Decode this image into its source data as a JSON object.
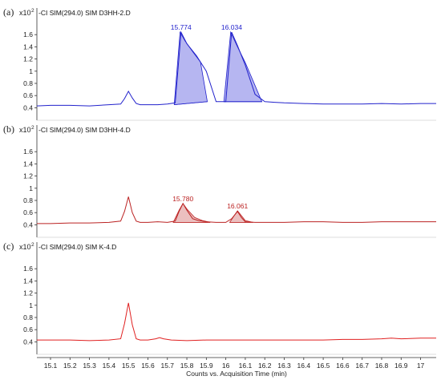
{
  "chart_data": {
    "type": "line",
    "xlabel": "Counts vs. Acquisition Time (min)",
    "x_ticks": [
      "15.1",
      "15.2",
      "15.3",
      "15.4",
      "15.5",
      "15.6",
      "15.7",
      "15.8",
      "15.9",
      "16",
      "16.1",
      "16.2",
      "16.3",
      "16.4",
      "16.5",
      "16.6",
      "16.7",
      "16.8",
      "16.9",
      "17"
    ],
    "xlim": [
      15.03,
      17.08
    ],
    "y_ticks": [
      "0.4",
      "0.6",
      "0.8",
      "1",
      "1.2",
      "1.4",
      "1.6"
    ],
    "ylim": [
      0.3,
      1.8
    ],
    "y_scale_label": "x10",
    "y_scale_exponent": "2",
    "grid": false,
    "panels": [
      {
        "letter": "(a)",
        "title": "-CI SIM(294.0) SIM D3HH-2.D",
        "color": "#2222cc",
        "fill_color": "#a9a9ee",
        "series": {
          "x": [
            15.03,
            15.1,
            15.2,
            15.3,
            15.4,
            15.46,
            15.48,
            15.5,
            15.52,
            15.54,
            15.56,
            15.6,
            15.65,
            15.7,
            15.74,
            15.77,
            15.8,
            15.85,
            15.9,
            15.95,
            16.0,
            16.03,
            16.06,
            16.1,
            16.15,
            16.2,
            16.25,
            16.3,
            16.4,
            16.5,
            16.6,
            16.7,
            16.8,
            16.9,
            17.0,
            17.08
          ],
          "y": [
            0.43,
            0.44,
            0.44,
            0.43,
            0.45,
            0.46,
            0.55,
            0.67,
            0.56,
            0.47,
            0.45,
            0.45,
            0.45,
            0.46,
            0.48,
            1.64,
            1.45,
            1.25,
            1.0,
            0.5,
            0.5,
            1.64,
            1.42,
            1.1,
            0.62,
            0.5,
            0.49,
            0.48,
            0.47,
            0.46,
            0.46,
            0.46,
            0.47,
            0.46,
            0.47,
            0.47
          ]
        },
        "peaks": [
          {
            "label": "15.774",
            "x_start": 15.735,
            "x_end": 15.905,
            "x_top": 15.77,
            "y_top": 1.64,
            "baseline_start": 0.45,
            "baseline_end": 0.5,
            "outline_x": [
              15.735,
              15.765,
              15.79,
              15.83,
              15.87,
              15.905
            ],
            "outline_y": [
              0.45,
              1.64,
              1.5,
              1.32,
              1.15,
              0.5
            ]
          },
          {
            "label": "16.034",
            "x_start": 15.99,
            "x_end": 16.185,
            "x_top": 16.03,
            "y_top": 1.64,
            "baseline_start": 0.5,
            "baseline_end": 0.5,
            "outline_x": [
              15.99,
              16.025,
              16.06,
              16.1,
              16.14,
              16.185
            ],
            "outline_y": [
              0.5,
              1.64,
              1.4,
              1.14,
              0.84,
              0.5
            ]
          }
        ]
      },
      {
        "letter": "(b)",
        "title": "-CI SIM(294.0) SIM D3HH-4.D",
        "color": "#bb2222",
        "fill_color": "#e8b4b4",
        "series": {
          "x": [
            15.03,
            15.1,
            15.2,
            15.3,
            15.4,
            15.46,
            15.48,
            15.5,
            15.52,
            15.54,
            15.56,
            15.6,
            15.65,
            15.7,
            15.74,
            15.76,
            15.78,
            15.8,
            15.83,
            15.86,
            15.9,
            15.95,
            16.0,
            16.03,
            16.06,
            16.08,
            16.1,
            16.15,
            16.2,
            16.3,
            16.4,
            16.5,
            16.6,
            16.7,
            16.8,
            16.9,
            17.0,
            17.08
          ],
          "y": [
            0.42,
            0.42,
            0.43,
            0.43,
            0.44,
            0.46,
            0.62,
            0.86,
            0.6,
            0.46,
            0.44,
            0.44,
            0.45,
            0.44,
            0.46,
            0.62,
            0.75,
            0.64,
            0.5,
            0.47,
            0.45,
            0.44,
            0.44,
            0.5,
            0.62,
            0.52,
            0.45,
            0.44,
            0.44,
            0.44,
            0.45,
            0.45,
            0.44,
            0.44,
            0.45,
            0.45,
            0.45,
            0.45
          ]
        },
        "peaks": [
          {
            "label": "15.780",
            "x_start": 15.73,
            "x_end": 15.92,
            "x_top": 15.78,
            "y_top": 0.75,
            "baseline_start": 0.44,
            "baseline_end": 0.44,
            "outline_x": [
              15.73,
              15.76,
              15.78,
              15.8,
              15.84,
              15.88,
              15.92
            ],
            "outline_y": [
              0.44,
              0.64,
              0.75,
              0.66,
              0.52,
              0.47,
              0.44
            ]
          },
          {
            "label": "16.061",
            "x_start": 16.02,
            "x_end": 16.14,
            "x_top": 16.06,
            "y_top": 0.63,
            "baseline_start": 0.44,
            "baseline_end": 0.44,
            "outline_x": [
              16.02,
              16.045,
              16.06,
              16.08,
              16.1,
              16.14
            ],
            "outline_y": [
              0.44,
              0.56,
              0.63,
              0.55,
              0.47,
              0.44
            ]
          }
        ]
      },
      {
        "letter": "(c)",
        "title": "-CI SIM(294.0) SIM K-4.D",
        "color": "#e02020",
        "fill_color": "#f4bcbc",
        "series": {
          "x": [
            15.03,
            15.1,
            15.2,
            15.3,
            15.4,
            15.46,
            15.48,
            15.5,
            15.52,
            15.54,
            15.56,
            15.6,
            15.64,
            15.66,
            15.68,
            15.72,
            15.8,
            15.9,
            16.0,
            16.1,
            16.2,
            16.3,
            16.4,
            16.5,
            16.6,
            16.7,
            16.8,
            16.85,
            16.9,
            17.0,
            17.08
          ],
          "y": [
            0.43,
            0.43,
            0.43,
            0.42,
            0.43,
            0.45,
            0.7,
            1.04,
            0.68,
            0.45,
            0.43,
            0.43,
            0.45,
            0.47,
            0.45,
            0.43,
            0.42,
            0.43,
            0.43,
            0.43,
            0.43,
            0.43,
            0.43,
            0.43,
            0.44,
            0.44,
            0.45,
            0.46,
            0.45,
            0.46,
            0.46
          ]
        },
        "peaks": []
      }
    ]
  }
}
